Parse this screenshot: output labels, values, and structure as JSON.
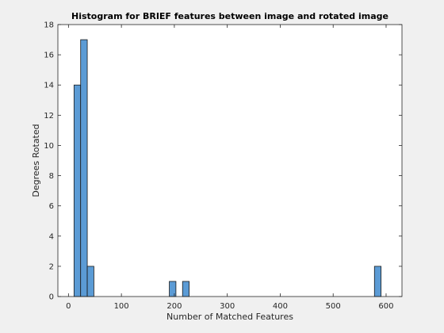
{
  "chart_data": {
    "type": "bar",
    "title": "Histogram for BRIEF features between image and rotated image",
    "xlabel": "Number of Matched Features",
    "ylabel": "Degrees Rotated",
    "xlim": [
      -20,
      630
    ],
    "ylim": [
      0,
      18
    ],
    "xticks": [
      0,
      100,
      200,
      300,
      400,
      500,
      600
    ],
    "yticks": [
      0,
      2,
      4,
      6,
      8,
      10,
      12,
      14,
      16,
      18
    ],
    "bin_width": 12.5,
    "bar_color": "#5b9bd5",
    "edge_color": "#1a1a1a",
    "grid": false,
    "bins": [
      {
        "x0": 10.5,
        "x1": 23,
        "value": 14
      },
      {
        "x0": 23,
        "x1": 35.5,
        "value": 17
      },
      {
        "x0": 35.5,
        "x1": 48,
        "value": 2
      },
      {
        "x0": 190.5,
        "x1": 203,
        "value": 1
      },
      {
        "x0": 215.5,
        "x1": 228,
        "value": 1
      },
      {
        "x0": 578,
        "x1": 590.5,
        "value": 2
      }
    ]
  }
}
